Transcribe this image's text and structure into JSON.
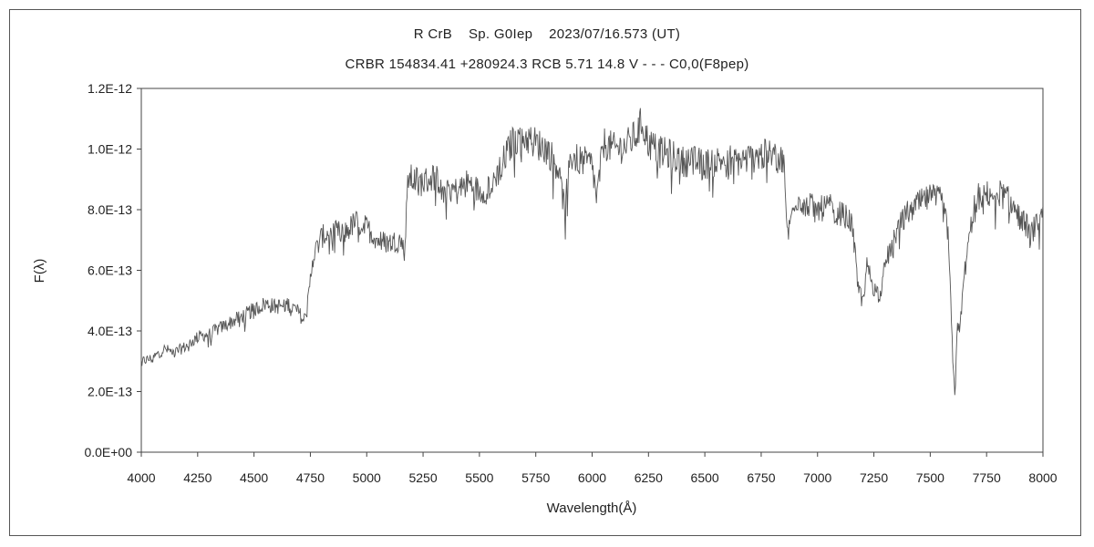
{
  "chart_data": {
    "type": "line",
    "title": "R CrB    Sp. G0Iep    2023/07/16.573 (UT)",
    "subtitle": "CRBR 154834.41 +280924.3 RCB 5.71 14.8 V - - - C0,0(F8pep)",
    "xlabel": "Wavelength(Å)",
    "ylabel": "F(λ)",
    "xlim": [
      4000,
      8000
    ],
    "ylim": [
      0,
      1.2e-12
    ],
    "xticks": [
      4000,
      4250,
      4500,
      4750,
      5000,
      5250,
      5500,
      5750,
      6000,
      6250,
      6500,
      6750,
      7000,
      7250,
      7500,
      7750,
      8000
    ],
    "xtick_labels": [
      "4000",
      "4250",
      "4500",
      "4750",
      "5000",
      "5250",
      "5500",
      "5750",
      "6000",
      "6250",
      "6500",
      "6750",
      "7000",
      "7250",
      "7500",
      "7750",
      "8000"
    ],
    "yticks": [
      0,
      2e-13,
      4e-13,
      6e-13,
      8e-13,
      1e-12,
      1.2e-12
    ],
    "ytick_labels": [
      "0.0E+00",
      "2.0E-13",
      "4.0E-13",
      "6.0E-13",
      "8.0E-13",
      "1.0E-12",
      "1.2E-12"
    ],
    "grid": false,
    "line_color": "#555555",
    "series": [
      {
        "x": [
          4000,
          4050,
          4100,
          4150,
          4200,
          4250,
          4300,
          4350,
          4400,
          4450,
          4500,
          4550,
          4600,
          4650,
          4700,
          4720,
          4740,
          4760,
          4800,
          4850,
          4900,
          4950,
          5000,
          5050,
          5100,
          5150,
          5170,
          5180,
          5200,
          5250,
          5300,
          5350,
          5400,
          5450,
          5500,
          5550,
          5600,
          5650,
          5700,
          5750,
          5800,
          5850,
          5880,
          5900,
          5950,
          6000,
          6020,
          6050,
          6100,
          6150,
          6200,
          6220,
          6250,
          6300,
          6350,
          6400,
          6450,
          6500,
          6550,
          6600,
          6650,
          6700,
          6750,
          6800,
          6850,
          6860,
          6870,
          6900,
          6950,
          7000,
          7050,
          7100,
          7150,
          7180,
          7200,
          7220,
          7250,
          7280,
          7300,
          7350,
          7400,
          7450,
          7500,
          7550,
          7580,
          7600,
          7610,
          7620,
          7630,
          7650,
          7680,
          7700,
          7750,
          7800,
          7850,
          7900,
          7950,
          8000
        ],
        "y": [
          3e-13,
          3.1e-13,
          3.4e-13,
          3.3e-13,
          3.5e-13,
          3.8e-13,
          3.9e-13,
          4.1e-13,
          4.3e-13,
          4.5e-13,
          4.7e-13,
          4.9e-13,
          4.8e-13,
          4.9e-13,
          4.6e-13,
          4.3e-13,
          5e-13,
          6.4e-13,
          7.1e-13,
          7.3e-13,
          7.2e-13,
          7.6e-13,
          7.4e-13,
          7e-13,
          6.9e-13,
          7e-13,
          6.6e-13,
          9.1e-13,
          9e-13,
          8.9e-13,
          9.1e-13,
          8.8e-13,
          8.6e-13,
          8.9e-13,
          8.6e-13,
          8.8e-13,
          9.5e-13,
          1.03e-12,
          1.04e-12,
          1.02e-12,
          1e-12,
          9.4e-13,
          7.9e-13,
          9.8e-13,
          9.6e-13,
          9.5e-13,
          8.3e-13,
          1.02e-12,
          1e-12,
          1.01e-12,
          1.05e-12,
          1.09e-12,
          1.02e-12,
          9.9e-13,
          9.8e-13,
          9.6e-13,
          9.6e-13,
          9.5e-13,
          9.6e-13,
          9.7e-13,
          9.6e-13,
          9.7e-13,
          9.8e-13,
          9.8e-13,
          9.6e-13,
          7.9e-13,
          7.2e-13,
          8.4e-13,
          8.2e-13,
          8e-13,
          8.1e-13,
          7.9e-13,
          7.6e-13,
          5.6e-13,
          4.9e-13,
          6.2e-13,
          5.4e-13,
          5.2e-13,
          6.2e-13,
          7.3e-13,
          7.9e-13,
          8.2e-13,
          8.4e-13,
          8.3e-13,
          7.2e-13,
          3e-13,
          1.8e-13,
          4.4e-13,
          3.9e-13,
          5.8e-13,
          7.4e-13,
          8.4e-13,
          8.5e-13,
          8.6e-13,
          8.3e-13,
          7.7e-13,
          7.3e-13,
          7.7e-13
        ]
      }
    ]
  }
}
